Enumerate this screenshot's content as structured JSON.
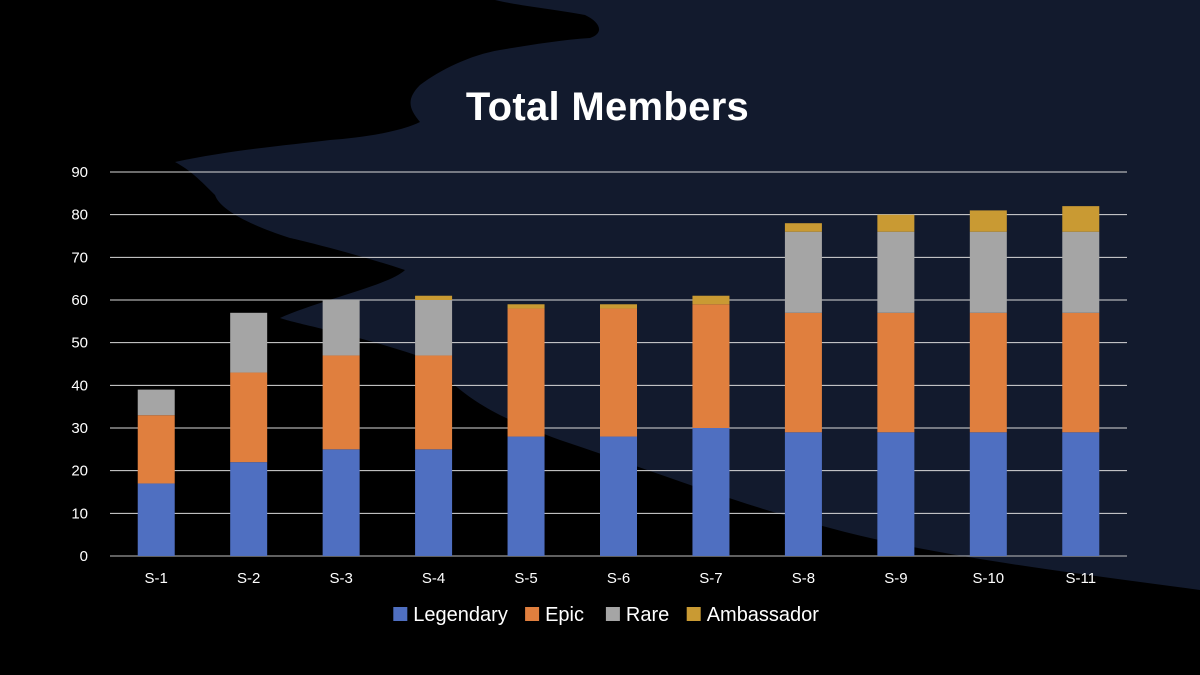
{
  "chart_data": {
    "type": "bar",
    "stacked": true,
    "title": "Total Members",
    "categories": [
      "S-1",
      "S-2",
      "S-3",
      "S-4",
      "S-5",
      "S-6",
      "S-7",
      "S-8",
      "S-9",
      "S-10",
      "S-11"
    ],
    "series": [
      {
        "name": "Legendary",
        "color": "#4f6fc1",
        "values": [
          17,
          22,
          25,
          25,
          28,
          28,
          30,
          29,
          29,
          29,
          29
        ]
      },
      {
        "name": "Epic",
        "color": "#e07f3e",
        "values": [
          16,
          21,
          22,
          22,
          30,
          30,
          29,
          28,
          28,
          28,
          28
        ]
      },
      {
        "name": "Rare",
        "color": "#a5a5a5",
        "values": [
          6,
          14,
          13,
          13,
          0,
          0,
          0,
          19,
          19,
          19,
          19
        ]
      },
      {
        "name": "Ambassador",
        "color": "#c99a33",
        "values": [
          0,
          0,
          0,
          1,
          1,
          1,
          2,
          2,
          4,
          5,
          6
        ]
      }
    ],
    "ylim": [
      0,
      90
    ],
    "yticks": [
      0,
      10,
      20,
      30,
      40,
      50,
      60,
      70,
      80,
      90
    ],
    "grid": true,
    "legend_position": "bottom",
    "background_dark": "#000000",
    "background_navy": "#121a2d"
  }
}
